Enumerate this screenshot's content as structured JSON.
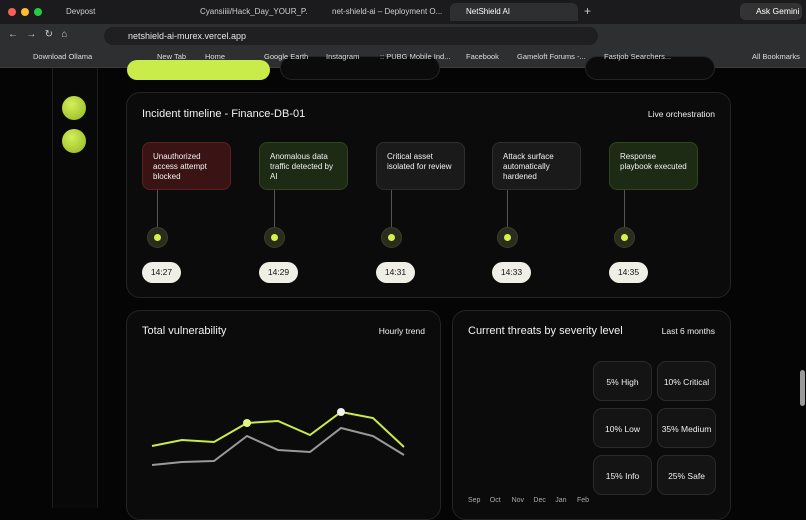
{
  "browser": {
    "tabs": [
      "Devpost",
      "Cyansiiii/Hack_Day_YOUR_P...",
      "net-shield-ai – Deployment O...",
      "NetShield AI"
    ],
    "address": "netshield-ai-murex.vercel.app",
    "assistant": "Ask Gemini",
    "bookmarks": [
      "Download Ollama",
      "New Tab",
      "Home",
      "Google Earth",
      "Instagram",
      ":: PUBG Mobile Ind...",
      "Facebook",
      "Gameloft Forums -...",
      "Fastjob Searchers..."
    ],
    "all_bookmarks": "All Bookmarks"
  },
  "timeline": {
    "title": "Incident timeline - Finance-DB-01",
    "badge": "Live orchestration",
    "events": [
      {
        "text": "Unauthorized access attempt blocked",
        "time": "14:27"
      },
      {
        "text": "Anomalous data traffic detected by AI",
        "time": "14:29"
      },
      {
        "text": "Critical asset isolated for review",
        "time": "14:31"
      },
      {
        "text": "Attack surface automatically hardened",
        "time": "14:33"
      },
      {
        "text": "Response playbook executed",
        "time": "14:35"
      }
    ]
  },
  "vulnerability": {
    "title": "Total vulnerability",
    "badge": "Hourly trend"
  },
  "threats": {
    "title": "Current threats by severity level",
    "badge": "Last 6 months",
    "levels": [
      "5% High",
      "10% Critical",
      "10% Low",
      "35% Medium",
      "15% Info",
      "25% Safe"
    ],
    "months": [
      "Sep",
      "Oct",
      "Nov",
      "Dec",
      "Jan",
      "Feb"
    ]
  }
}
